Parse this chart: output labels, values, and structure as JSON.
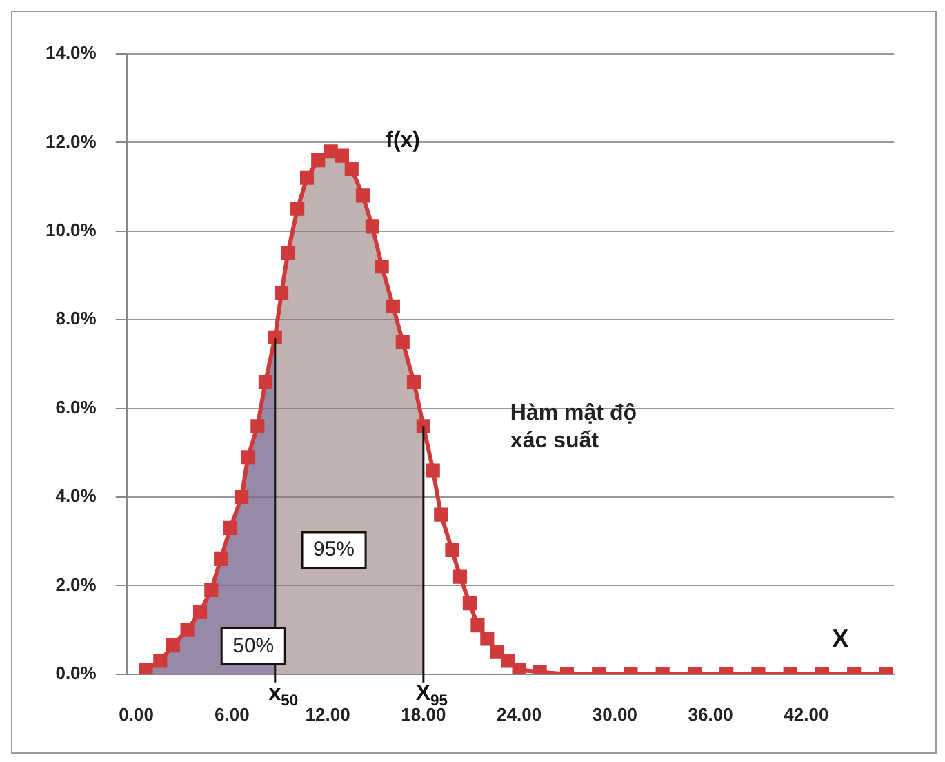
{
  "chart_data": {
    "type": "line",
    "xlabel": "X",
    "grid": "y",
    "legend": false,
    "xlim": [
      -0.6,
      47.5
    ],
    "ylim": [
      0,
      14
    ],
    "xticks": [
      {
        "value": 0,
        "label": "0.00"
      },
      {
        "value": 6,
        "label": "6.00"
      },
      {
        "value": 12,
        "label": "12.00"
      },
      {
        "value": 18,
        "label": "18.00"
      },
      {
        "value": 24,
        "label": "24.00"
      },
      {
        "value": 30,
        "label": "30.00"
      },
      {
        "value": 36,
        "label": "36.00"
      },
      {
        "value": 42,
        "label": "42.00"
      }
    ],
    "yticks": [
      {
        "value": 0,
        "label": "0.0%"
      },
      {
        "value": 2,
        "label": "2.0%"
      },
      {
        "value": 4,
        "label": "4.0%"
      },
      {
        "value": 6,
        "label": "6.0%"
      },
      {
        "value": 8,
        "label": "8.0%"
      },
      {
        "value": 10,
        "label": "10.0%"
      },
      {
        "value": 12,
        "label": "12.0%"
      },
      {
        "value": 14,
        "label": "14.0%"
      }
    ],
    "series": [
      {
        "type": "area",
        "marker": "none",
        "color": "#8a6f6f",
        "x": [
          0.6,
          1.5,
          2.3,
          3.2,
          4.0,
          4.7,
          5.3,
          5.9,
          6.6,
          7.0,
          7.6,
          8.1,
          8.7,
          9.1,
          9.5,
          10.1,
          10.7,
          11.4,
          12.2,
          12.9,
          13.5,
          14.2,
          14.8,
          15.4,
          16.1,
          16.7,
          17.4,
          18.0
        ],
        "values": [
          0.1,
          0.3,
          0.65,
          1.0,
          1.4,
          1.9,
          2.6,
          3.3,
          4.0,
          4.9,
          5.6,
          6.6,
          7.6,
          8.6,
          9.5,
          10.5,
          11.2,
          11.6,
          11.8,
          11.7,
          11.4,
          10.8,
          10.1,
          9.2,
          8.3,
          7.5,
          6.6,
          5.6
        ]
      },
      {
        "type": "area",
        "marker": "none",
        "color": "#5a5ad0",
        "x": [
          0.6,
          1.5,
          2.3,
          3.2,
          4.0,
          4.7,
          5.3,
          5.9,
          6.6,
          7.0,
          7.6,
          8.1,
          8.7
        ],
        "values": [
          0.1,
          0.3,
          0.65,
          1.0,
          1.4,
          1.9,
          2.6,
          3.3,
          4.0,
          4.9,
          5.6,
          6.6,
          7.6
        ]
      },
      {
        "marker": "square",
        "color": "#d03a3a",
        "x": [
          0.6,
          1.5,
          2.3,
          3.2,
          4.0,
          4.7,
          5.3,
          5.9,
          6.6,
          7.0,
          7.6,
          8.1,
          8.7,
          9.1,
          9.5,
          10.1,
          10.7,
          11.4,
          12.2,
          12.9,
          13.5,
          14.2,
          14.8,
          15.4,
          16.1,
          16.7,
          17.4,
          18.0,
          18.6,
          19.1,
          19.8,
          20.3,
          20.9,
          21.4,
          22.0,
          22.6,
          23.3,
          24.0,
          25.3,
          27,
          29,
          31,
          33,
          35,
          37,
          39,
          41,
          43,
          45,
          47
        ],
        "values": [
          0.1,
          0.3,
          0.65,
          1.0,
          1.4,
          1.9,
          2.6,
          3.3,
          4.0,
          4.9,
          5.6,
          6.6,
          7.6,
          8.6,
          9.5,
          10.5,
          11.2,
          11.6,
          11.8,
          11.7,
          11.4,
          10.8,
          10.1,
          9.2,
          8.3,
          7.5,
          6.6,
          5.6,
          4.6,
          3.6,
          2.8,
          2.2,
          1.6,
          1.1,
          0.8,
          0.5,
          0.3,
          0.1,
          0.05,
          0,
          0,
          0,
          0,
          0,
          0,
          0,
          0,
          0,
          0,
          0
        ]
      }
    ],
    "ref_lines": [
      {
        "axis": "x",
        "value": 8.7,
        "label": "x$_{50}$"
      },
      {
        "axis": "x",
        "value": 18.0,
        "label": "X$_{95}$"
      }
    ],
    "annotations": [
      "f(x)",
      "50%",
      "95%",
      "Hàm mật độ xác suất"
    ]
  }
}
